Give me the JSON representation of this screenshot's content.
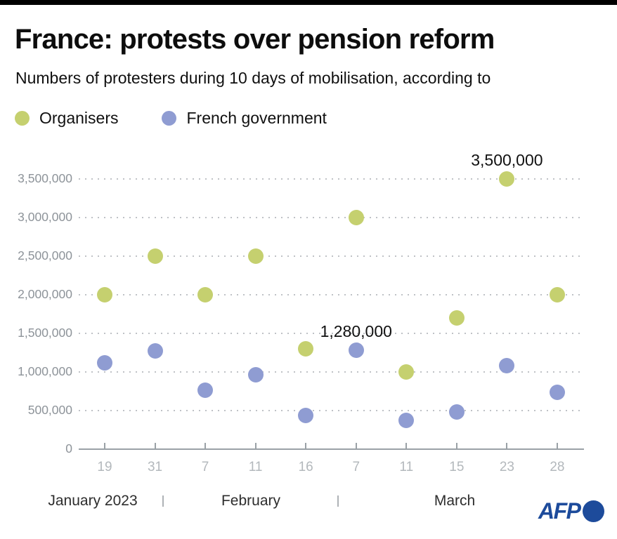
{
  "header": {
    "title": "France: protests over pension reform",
    "subtitle": "Numbers of protesters during 10 days of mobilisation, according to"
  },
  "footer": {
    "logo_text": "AFP"
  },
  "colors": {
    "organisers": "#c5d06f",
    "government": "#8f9cd2",
    "afp_blue": "#1d4b9b"
  },
  "chart_data": {
    "type": "scatter",
    "title": "France: protests over pension reform",
    "subtitle": "Numbers of protesters during 10 days of mobilisation, according to",
    "x_labels": [
      "19",
      "31",
      "7",
      "11",
      "16",
      "7",
      "11",
      "15",
      "23",
      "28"
    ],
    "month_labels": [
      "January 2023",
      "February",
      "March"
    ],
    "series": [
      {
        "name": "Organisers",
        "color_key": "organisers",
        "values": [
          2000000,
          2500000,
          2000000,
          2500000,
          1300000,
          3000000,
          1000000,
          1700000,
          3500000,
          2000000
        ]
      },
      {
        "name": "French government",
        "color_key": "government",
        "values": [
          1120000,
          1270000,
          760000,
          960000,
          440000,
          1280000,
          370000,
          480000,
          1080000,
          740000
        ]
      }
    ],
    "y_ticks": [
      {
        "label": "3,500,000",
        "value": 3500000
      },
      {
        "label": "3,000,000",
        "value": 3000000
      },
      {
        "label": "2,500,000",
        "value": 2500000
      },
      {
        "label": "2,000,000",
        "value": 2000000
      },
      {
        "label": "1,500,000",
        "value": 1500000
      },
      {
        "label": "1,000,000",
        "value": 1000000
      },
      {
        "label": "500,000",
        "value": 500000
      },
      {
        "label": "0",
        "value": 0
      }
    ],
    "ylim": [
      0,
      3500000
    ],
    "grid": "dotted-horizontal",
    "legend_position": "top-left",
    "annotations": [
      {
        "text": "3,500,000",
        "series": 0,
        "index": 8
      },
      {
        "text": "1,280,000",
        "series": 1,
        "index": 5
      }
    ]
  }
}
